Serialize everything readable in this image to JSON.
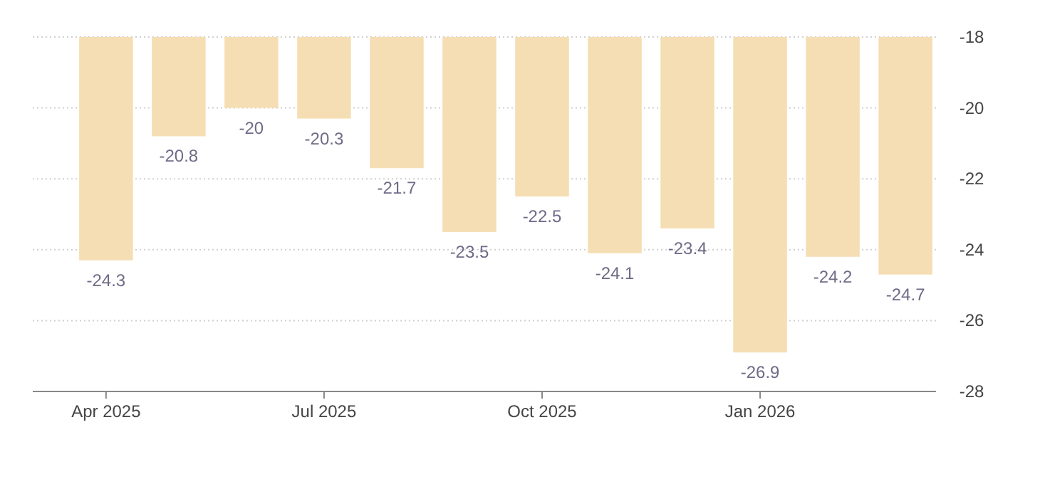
{
  "chart_data": {
    "type": "bar",
    "categories": [
      "Apr 2025",
      null,
      null,
      "Jul 2025",
      null,
      null,
      "Oct 2025",
      null,
      null,
      "Jan 2026",
      null,
      null
    ],
    "values": [
      -24.3,
      -20.8,
      -20,
      -20.3,
      -21.7,
      -23.5,
      -22.5,
      -24.1,
      -23.4,
      -26.9,
      -24.2,
      -24.7
    ],
    "color": "#f5deb3",
    "ylim": [
      -28,
      -18
    ],
    "yticks": [
      -28,
      -26,
      -24,
      -22,
      -20,
      -18
    ],
    "grid": "y",
    "data_labels": true
  }
}
